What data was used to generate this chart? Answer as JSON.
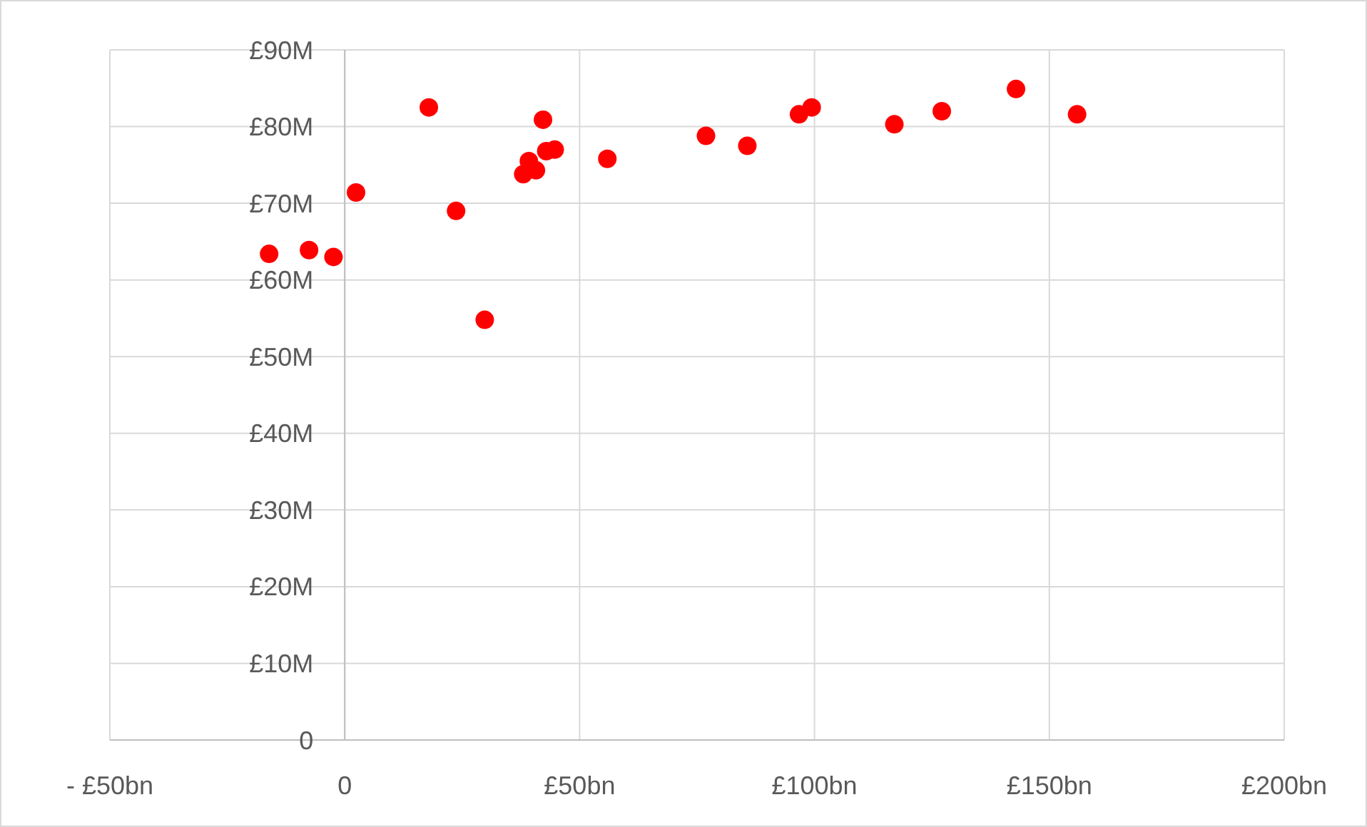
{
  "chart_data": {
    "type": "scatter",
    "series": [
      {
        "color": "#ff0000",
        "x": [
          -16.1,
          -7.6,
          -2.4,
          2.4,
          17.9,
          23.7,
          29.8,
          38.0,
          39.2,
          40.7,
          42.2,
          42.9,
          44.7,
          55.9,
          76.9,
          85.7,
          96.7,
          99.4,
          117.0,
          127.1,
          142.9,
          155.9
        ],
        "values": [
          63.4,
          63.9,
          63.0,
          71.4,
          82.5,
          69.0,
          54.8,
          73.8,
          75.5,
          74.3,
          80.9,
          76.8,
          77.0,
          75.8,
          78.8,
          77.5,
          81.6,
          82.5,
          80.3,
          82.0,
          84.9,
          81.6
        ]
      }
    ],
    "xlim": [
      -50,
      200
    ],
    "xticks": [
      {
        "value": -50,
        "label": "- £50bn"
      },
      0,
      {
        "value": 50,
        "label": "£50bn"
      },
      {
        "value": 100,
        "label": "£100bn"
      },
      {
        "value": 150,
        "label": "£150bn"
      },
      {
        "value": 200,
        "label": "£200bn"
      }
    ],
    "ylim": [
      0,
      90
    ],
    "yticks": [
      0,
      {
        "value": 10,
        "label": "£10M"
      },
      {
        "value": 20,
        "label": "£20M"
      },
      {
        "value": 30,
        "label": "£30M"
      },
      {
        "value": 40,
        "label": "£40M"
      },
      {
        "value": 50,
        "label": "£50M"
      },
      {
        "value": 60,
        "label": "£60M"
      },
      {
        "value": 70,
        "label": "£70M"
      },
      {
        "value": 80,
        "label": "£80M"
      },
      {
        "value": 90,
        "label": "£90M"
      }
    ],
    "grid": true,
    "marker": "circle"
  }
}
